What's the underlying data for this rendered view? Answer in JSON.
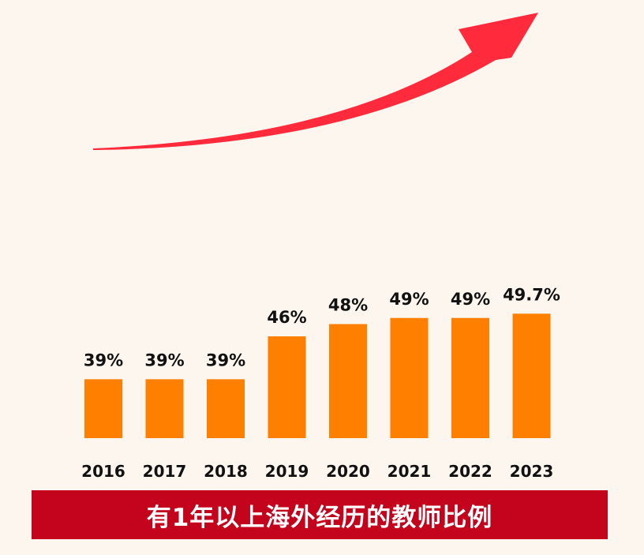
{
  "colors": {
    "background": "#fcf6ee",
    "bar": "#ff7f00",
    "arrow": "#ff2a3c",
    "caption_band": "#c4031c",
    "caption_text": "#ffffff",
    "label_text": "#111111"
  },
  "caption": "有1年以上海外经历的教师比例",
  "chart_data": {
    "type": "bar",
    "categories": [
      "2016",
      "2017",
      "2018",
      "2019",
      "2020",
      "2021",
      "2022",
      "2023"
    ],
    "values": [
      39,
      39,
      39,
      46,
      48,
      49,
      49,
      49.7
    ],
    "data_labels": [
      "39%",
      "39%",
      "39%",
      "46%",
      "48%",
      "49%",
      "49%",
      "49.7%"
    ],
    "title": "",
    "xlabel": "",
    "ylabel": "",
    "unit": "%",
    "ylim": [
      0,
      50
    ],
    "grid": false,
    "legend": "none",
    "decoration": "upward-trend-arrow"
  }
}
